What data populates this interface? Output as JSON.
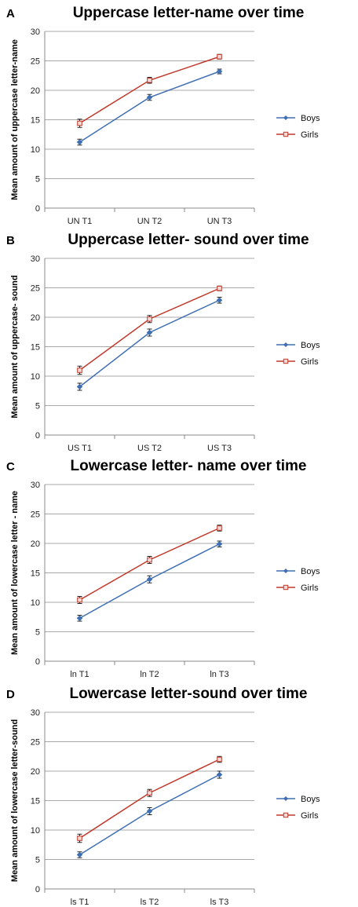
{
  "colors": {
    "boys": "#3f6fb3",
    "girls": "#c0392b",
    "grid": "#a8a8a8",
    "axis": "#888888"
  },
  "chart_data": [
    {
      "panel_label": "A",
      "type": "line",
      "title": "Uppercase letter-name over time",
      "xlabel": "",
      "ylabel": "Mean amount of uppercase letter-name",
      "categories": [
        "UN T1",
        "UN T2",
        "UN T3"
      ],
      "ylim": [
        0,
        30
      ],
      "yticks": [
        "0",
        "5",
        "10",
        "15",
        "20",
        "25",
        "30"
      ],
      "grid": true,
      "legend_position": "right",
      "series": [
        {
          "name": "Boys",
          "color": "#3f6fb3",
          "values": [
            11.2,
            18.8,
            23.2
          ],
          "errors": [
            0.5,
            0.5,
            0.4
          ]
        },
        {
          "name": "Girls",
          "color": "#c0392b",
          "values": [
            14.4,
            21.7,
            25.7
          ],
          "errors": [
            0.7,
            0.5,
            0.4
          ]
        }
      ]
    },
    {
      "panel_label": "B",
      "type": "line",
      "title": "Uppercase letter- sound over time",
      "xlabel": "",
      "ylabel": "Mean amount of  uppercase- sound",
      "categories": [
        "US T1",
        "US T2",
        "US T3"
      ],
      "ylim": [
        0,
        30
      ],
      "yticks": [
        "0",
        "5",
        "10",
        "15",
        "20",
        "25",
        "30"
      ],
      "grid": true,
      "legend_position": "right",
      "series": [
        {
          "name": "Boys",
          "color": "#3f6fb3",
          "values": [
            8.2,
            17.4,
            22.9
          ],
          "errors": [
            0.6,
            0.6,
            0.5
          ]
        },
        {
          "name": "Girls",
          "color": "#c0392b",
          "values": [
            11.0,
            19.7,
            24.9
          ],
          "errors": [
            0.7,
            0.6,
            0.4
          ]
        }
      ]
    },
    {
      "panel_label": "C",
      "type": "line",
      "title": "Lowercase letter- name over time",
      "xlabel": "",
      "ylabel": "Mean amount of lowercase letter - name",
      "categories": [
        "ln T1",
        "ln T2",
        "ln T3"
      ],
      "ylim": [
        0,
        30
      ],
      "yticks": [
        "0",
        "5",
        "10",
        "15",
        "20",
        "25",
        "30"
      ],
      "grid": true,
      "legend_position": "right",
      "series": [
        {
          "name": "Boys",
          "color": "#3f6fb3",
          "values": [
            7.3,
            13.9,
            19.9
          ],
          "errors": [
            0.5,
            0.6,
            0.5
          ]
        },
        {
          "name": "Girls",
          "color": "#c0392b",
          "values": [
            10.4,
            17.2,
            22.6
          ],
          "errors": [
            0.6,
            0.6,
            0.5
          ]
        }
      ]
    },
    {
      "panel_label": "D",
      "type": "line",
      "title": "Lowercase letter-sound over time",
      "xlabel": "",
      "ylabel": "Mean amount of lowercase letter-sound",
      "categories": [
        "ls T1",
        "ls T2",
        "ls T3"
      ],
      "ylim": [
        0,
        30
      ],
      "yticks": [
        "0",
        "5",
        "10",
        "15",
        "20",
        "25",
        "30"
      ],
      "grid": true,
      "legend_position": "right",
      "series": [
        {
          "name": "Boys",
          "color": "#3f6fb3",
          "values": [
            5.8,
            13.2,
            19.4
          ],
          "errors": [
            0.5,
            0.6,
            0.6
          ]
        },
        {
          "name": "Girls",
          "color": "#c0392b",
          "values": [
            8.6,
            16.3,
            22.0
          ],
          "errors": [
            0.7,
            0.6,
            0.5
          ]
        }
      ]
    }
  ]
}
